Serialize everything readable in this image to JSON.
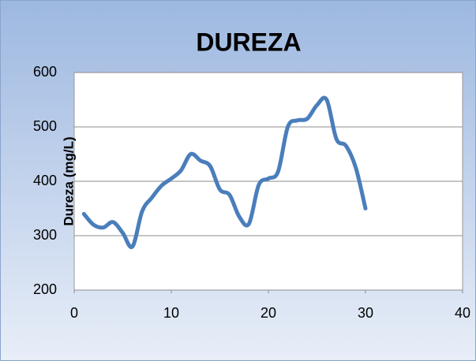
{
  "chart_data": {
    "type": "line",
    "title": "DUREZA",
    "y_label": "Dureza (mg/L)",
    "x": [
      1,
      2,
      3,
      4,
      5,
      6,
      7,
      8,
      9,
      10,
      11,
      12,
      13,
      14,
      15,
      16,
      17,
      18,
      19,
      20,
      21,
      22,
      23,
      24,
      25,
      26,
      27,
      28,
      29,
      30
    ],
    "series": [
      {
        "name": "Dureza",
        "color": "#4a7ebb",
        "values": [
          340,
          320,
          315,
          325,
          305,
          280,
          345,
          370,
          392,
          405,
          420,
          450,
          438,
          428,
          385,
          375,
          335,
          322,
          393,
          405,
          418,
          500,
          512,
          515,
          540,
          550,
          478,
          465,
          425,
          350
        ]
      }
    ],
    "xlim": [
      0,
      40
    ],
    "xticks": [
      0,
      10,
      20,
      30,
      40
    ],
    "ylim": [
      200,
      600
    ],
    "yticks": [
      200,
      300,
      400,
      500,
      600
    ],
    "grid": true,
    "smooth": true
  }
}
